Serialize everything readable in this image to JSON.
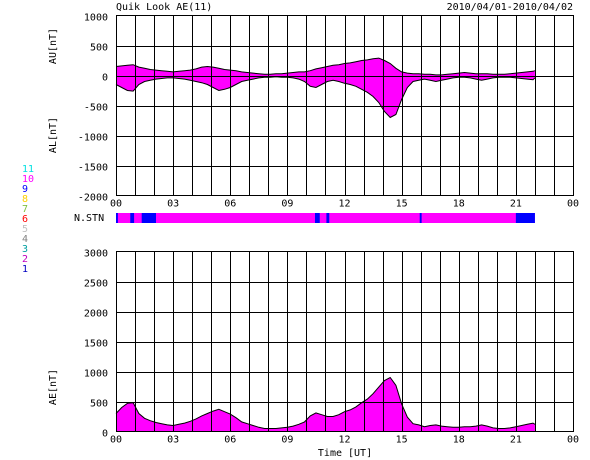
{
  "header": {
    "title": "Quik Look AE(11)",
    "date_range": "2010/04/01-2010/04/02"
  },
  "colors": {
    "station_fill": "#ff00ff",
    "station_alt": "#0000ff",
    "outline": "#000000"
  },
  "legend": {
    "items": [
      {
        "label": "11",
        "color": "#00e0e0"
      },
      {
        "label": "10",
        "color": "#ff00ff"
      },
      {
        "label": "9",
        "color": "#0000ff"
      },
      {
        "label": "8",
        "color": "#ffd000"
      },
      {
        "label": "7",
        "color": "#80c040"
      },
      {
        "label": "6",
        "color": "#ff0000"
      },
      {
        "label": "5",
        "color": "#c0c0c0"
      },
      {
        "label": "4",
        "color": "#808080"
      },
      {
        "label": "3",
        "color": "#00a0a0"
      },
      {
        "label": "2",
        "color": "#c000c0"
      },
      {
        "label": "1",
        "color": "#0000c0"
      }
    ]
  },
  "chart_data": [
    {
      "type": "area",
      "id": "au_al",
      "ylabel_top": "AU[nT]",
      "ylabel_bottom": "AL[nT]",
      "ylim": [
        -2000,
        1000
      ],
      "y_ticks": [
        "1000",
        "500",
        "0",
        "-500",
        "-1000",
        "-1500",
        "-2000"
      ],
      "x_ticks": [
        "00",
        "03",
        "06",
        "09",
        "12",
        "15",
        "18",
        "21",
        "00"
      ],
      "xlim_hours": [
        0,
        24
      ],
      "data_end_hour": 22.0,
      "series": [
        {
          "name": "AU",
          "x": [
            0,
            0.3,
            0.6,
            0.9,
            1.2,
            1.5,
            1.8,
            2.1,
            2.4,
            2.7,
            3.0,
            3.3,
            3.6,
            3.9,
            4.2,
            4.5,
            4.8,
            5.1,
            5.4,
            5.7,
            6.0,
            6.3,
            6.6,
            6.9,
            7.2,
            7.5,
            7.8,
            8.1,
            8.4,
            8.7,
            9.0,
            9.3,
            9.6,
            9.9,
            10.2,
            10.5,
            10.8,
            11.1,
            11.4,
            11.7,
            12.0,
            12.3,
            12.6,
            12.9,
            13.2,
            13.5,
            13.8,
            14.1,
            14.4,
            14.7,
            15.0,
            15.3,
            15.6,
            15.9,
            16.2,
            16.5,
            16.8,
            17.1,
            17.4,
            17.7,
            18.0,
            18.3,
            18.6,
            18.9,
            19.2,
            19.5,
            19.8,
            20.1,
            20.4,
            20.7,
            21.0,
            21.3,
            21.6,
            21.9,
            22.0
          ],
          "values": [
            150,
            160,
            170,
            180,
            140,
            120,
            100,
            90,
            80,
            70,
            60,
            70,
            80,
            90,
            110,
            140,
            150,
            140,
            120,
            100,
            90,
            80,
            60,
            50,
            40,
            30,
            20,
            20,
            30,
            30,
            40,
            50,
            60,
            60,
            80,
            110,
            130,
            150,
            170,
            180,
            200,
            210,
            230,
            250,
            260,
            280,
            290,
            250,
            200,
            120,
            60,
            40,
            30,
            30,
            20,
            20,
            10,
            10,
            20,
            30,
            40,
            50,
            40,
            30,
            30,
            30,
            20,
            20,
            20,
            30,
            40,
            50,
            60,
            70,
            80
          ]
        },
        {
          "name": "AL",
          "x": [
            0,
            0.3,
            0.6,
            0.9,
            1.2,
            1.5,
            1.8,
            2.1,
            2.4,
            2.7,
            3.0,
            3.3,
            3.6,
            3.9,
            4.2,
            4.5,
            4.8,
            5.1,
            5.4,
            5.7,
            6.0,
            6.3,
            6.6,
            6.9,
            7.2,
            7.5,
            7.8,
            8.1,
            8.4,
            8.7,
            9.0,
            9.3,
            9.6,
            9.9,
            10.2,
            10.5,
            10.8,
            11.1,
            11.4,
            11.7,
            12.0,
            12.3,
            12.6,
            12.9,
            13.2,
            13.5,
            13.8,
            14.1,
            14.4,
            14.7,
            15.0,
            15.3,
            15.6,
            15.9,
            16.2,
            16.5,
            16.8,
            17.1,
            17.4,
            17.7,
            18.0,
            18.3,
            18.6,
            18.9,
            19.2,
            19.5,
            19.8,
            20.1,
            20.4,
            20.7,
            21.0,
            21.3,
            21.6,
            21.9,
            22.0
          ],
          "values": [
            -150,
            -200,
            -250,
            -260,
            -150,
            -100,
            -80,
            -60,
            -50,
            -40,
            -40,
            -50,
            -60,
            -80,
            -100,
            -120,
            -150,
            -200,
            -250,
            -230,
            -200,
            -150,
            -100,
            -80,
            -60,
            -40,
            -30,
            -30,
            -20,
            -30,
            -30,
            -40,
            -60,
            -100,
            -180,
            -200,
            -150,
            -100,
            -80,
            -100,
            -130,
            -150,
            -180,
            -230,
            -280,
            -350,
            -450,
            -600,
            -700,
            -650,
            -400,
            -200,
            -100,
            -80,
            -60,
            -80,
            -100,
            -80,
            -60,
            -40,
            -30,
            -30,
            -40,
            -60,
            -80,
            -60,
            -40,
            -30,
            -30,
            -30,
            -40,
            -50,
            -60,
            -70,
            -40
          ]
        }
      ]
    },
    {
      "type": "area",
      "id": "ae",
      "ylabel": "AE[nT]",
      "xlabel": "Time [UT]",
      "ylim": [
        0,
        3000
      ],
      "y_ticks": [
        "3000",
        "2500",
        "2000",
        "1500",
        "1000",
        "500",
        "0"
      ],
      "x_ticks": [
        "00",
        "03",
        "06",
        "09",
        "12",
        "15",
        "18",
        "21",
        "00"
      ],
      "xlim_hours": [
        0,
        24
      ],
      "data_end_hour": 22.0,
      "series": [
        {
          "name": "AE",
          "x": [
            0,
            0.3,
            0.6,
            0.9,
            1.2,
            1.5,
            1.8,
            2.1,
            2.4,
            2.7,
            3.0,
            3.3,
            3.6,
            3.9,
            4.2,
            4.5,
            4.8,
            5.1,
            5.4,
            5.7,
            6.0,
            6.3,
            6.6,
            6.9,
            7.2,
            7.5,
            7.8,
            8.1,
            8.4,
            8.7,
            9.0,
            9.3,
            9.6,
            9.9,
            10.2,
            10.5,
            10.8,
            11.1,
            11.4,
            11.7,
            12.0,
            12.3,
            12.6,
            12.9,
            13.2,
            13.5,
            13.8,
            14.1,
            14.4,
            14.7,
            15.0,
            15.3,
            15.6,
            15.9,
            16.2,
            16.5,
            16.8,
            17.1,
            17.4,
            17.7,
            18.0,
            18.3,
            18.6,
            18.9,
            19.2,
            19.5,
            19.8,
            20.1,
            20.4,
            20.7,
            21.0,
            21.3,
            21.6,
            21.9,
            22.0
          ],
          "values": [
            300,
            400,
            470,
            480,
            300,
            220,
            180,
            150,
            130,
            110,
            100,
            120,
            140,
            170,
            210,
            260,
            300,
            340,
            370,
            330,
            290,
            230,
            160,
            130,
            100,
            70,
            50,
            50,
            50,
            60,
            70,
            90,
            120,
            160,
            260,
            310,
            280,
            250,
            250,
            280,
            330,
            360,
            410,
            480,
            540,
            630,
            740,
            850,
            900,
            770,
            460,
            240,
            130,
            110,
            80,
            100,
            110,
            90,
            80,
            70,
            70,
            80,
            80,
            90,
            110,
            90,
            60,
            50,
            50,
            60,
            80,
            100,
            120,
            140,
            120
          ]
        }
      ]
    }
  ],
  "station_bar": {
    "label": "N.STN",
    "base_color": "#ff00ff",
    "segments": [
      {
        "start": 0.0,
        "end": 0.1,
        "color": "#0000ff"
      },
      {
        "start": 0.75,
        "end": 0.95,
        "color": "#0000ff"
      },
      {
        "start": 1.35,
        "end": 2.1,
        "color": "#0000ff"
      },
      {
        "start": 10.45,
        "end": 10.7,
        "color": "#0000ff"
      },
      {
        "start": 11.05,
        "end": 11.2,
        "color": "#0000ff"
      },
      {
        "start": 15.95,
        "end": 16.05,
        "color": "#0000ff"
      },
      {
        "start": 21.0,
        "end": 22.0,
        "color": "#0000ff"
      }
    ],
    "data_end_hour": 22.0
  }
}
